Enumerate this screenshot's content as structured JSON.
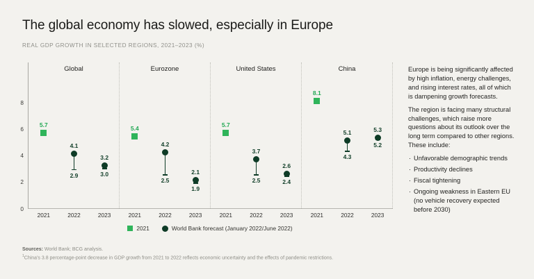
{
  "page": {
    "title": "The global economy has slowed, especially in Europe",
    "subtitle": "REAL GDP GROWTH IN SELECTED REGIONS, 2021–2023 (%)"
  },
  "chart_data": {
    "type": "scatter",
    "title": "REAL GDP GROWTH IN SELECTED REGIONS, 2021–2023 (%)",
    "ylabel": "Real GDP growth (%)",
    "ylim": [
      0,
      11
    ],
    "yticks": [
      0,
      2,
      4,
      6,
      8
    ],
    "grid": false,
    "legend_position": "bottom",
    "years": [
      "2021",
      "2022",
      "2023"
    ],
    "legend": [
      {
        "marker": "square",
        "label": "2021"
      },
      {
        "marker": "circle",
        "label": "World Bank forecast (January 2022/June 2022)"
      }
    ],
    "panels": [
      {
        "region": "Global",
        "actual_2021": 5.7,
        "forecasts": [
          {
            "year": "2022",
            "january_2022": 4.1,
            "june_2022": 2.9
          },
          {
            "year": "2023",
            "january_2022": 3.2,
            "june_2022": 3.0
          }
        ]
      },
      {
        "region": "Eurozone",
        "actual_2021": 5.4,
        "forecasts": [
          {
            "year": "2022",
            "january_2022": 4.2,
            "june_2022": 2.5
          },
          {
            "year": "2023",
            "january_2022": 2.1,
            "june_2022": 1.9
          }
        ]
      },
      {
        "region": "United States",
        "actual_2021": 5.7,
        "forecasts": [
          {
            "year": "2022",
            "january_2022": 3.7,
            "june_2022": 2.5
          },
          {
            "year": "2023",
            "january_2022": 2.6,
            "june_2022": 2.4
          }
        ]
      },
      {
        "region": "China",
        "actual_2021": 8.1,
        "forecasts": [
          {
            "year": "2022",
            "january_2022": 5.1,
            "june_2022": 4.3
          },
          {
            "year": "2023",
            "january_2022": 5.3,
            "june_2022": 5.2
          }
        ]
      }
    ]
  },
  "sidebar": {
    "paragraphs": [
      "Europe is being significantly affected by high inflation, energy challenges, and rising interest rates, all of which is dampening growth forecasts.",
      "The region is facing many structural challenges, which raise more questions about its outlook over the long term compared to other regions. These include:"
    ],
    "bullets": [
      "Unfavorable demographic trends",
      "Productivity declines",
      "Fiscal tightening",
      "Ongoing weakness in Eastern EU (no vehicle recovery expected before 2030)"
    ]
  },
  "footer": {
    "sources_label": "Sources:",
    "sources_text": "World Bank; BCG analysis.",
    "footnote_mark": "1",
    "footnote_text": "China's 3.8 percentage-point decrease in GDP growth from 2021 to 2022 reflects economic uncertainty and the effects of pandemic restrictions."
  },
  "colors": {
    "background": "#f3f2ee",
    "bright_green": "#2fb45a",
    "green_label": "#22a854",
    "dark_green": "#0e3b26",
    "dark_label": "#123f29",
    "axis_gray": "#a8a8a2"
  }
}
